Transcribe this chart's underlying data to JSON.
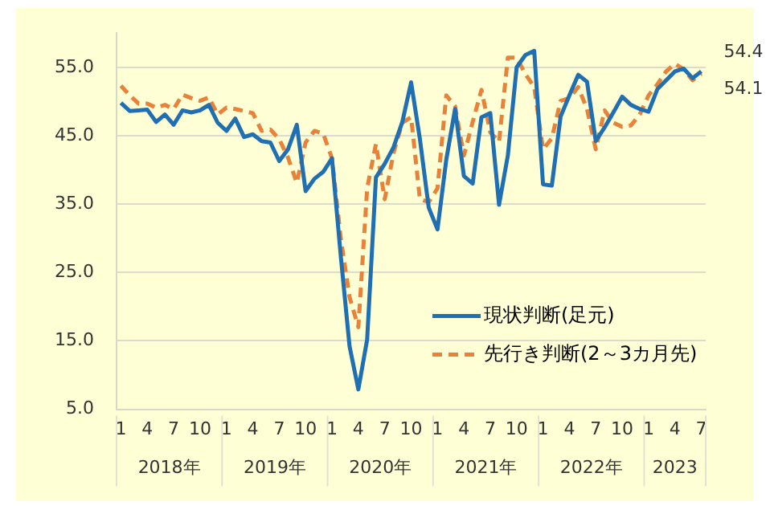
{
  "chart_data": {
    "type": "line",
    "categories": [
      "1",
      null,
      null,
      "4",
      null,
      null,
      "7",
      null,
      null,
      "10",
      null,
      null,
      "1",
      null,
      null,
      "4",
      null,
      null,
      "7",
      null,
      null,
      "10",
      null,
      null,
      "1",
      null,
      null,
      "4",
      null,
      null,
      "7",
      null,
      null,
      "10",
      null,
      null,
      "1",
      null,
      null,
      "4",
      null,
      null,
      "7",
      null,
      null,
      "10",
      null,
      null,
      "1",
      null,
      null,
      "4",
      null,
      null,
      "7",
      null,
      null,
      "10",
      null,
      null,
      "1",
      null,
      null,
      "4",
      null,
      null,
      "7"
    ],
    "annotations": [
      "2018年",
      "2019年",
      "2020年",
      "2021年",
      "2022年",
      "2023"
    ],
    "series": [
      {
        "name": "現状判断(足元)",
        "color": "#1f6fb2",
        "line_style": "solid",
        "values": [
          49.8,
          48.6,
          48.7,
          48.8,
          47.0,
          48.1,
          46.6,
          48.7,
          48.4,
          48.7,
          49.5,
          46.9,
          45.7,
          47.5,
          44.8,
          45.2,
          44.2,
          44.0,
          41.3,
          43.0,
          46.6,
          36.9,
          38.7,
          39.7,
          41.7,
          27.4,
          14.2,
          7.9,
          15.2,
          38.9,
          40.9,
          43.3,
          47.0,
          52.8,
          44.5,
          34.5,
          31.3,
          41.5,
          48.9,
          39.1,
          38.0,
          47.7,
          48.3,
          34.9,
          42.1,
          55.0,
          56.8,
          57.4,
          37.9,
          37.7,
          47.8,
          50.9,
          53.9,
          52.9,
          44.2,
          46.2,
          48.4,
          50.7,
          49.5,
          48.9,
          48.5,
          51.8,
          53.1,
          54.4,
          54.8,
          53.4,
          54.4
        ],
        "value_labels": [
          null,
          null,
          null,
          null,
          null,
          null,
          null,
          null,
          null,
          null,
          null,
          null,
          null,
          null,
          null,
          null,
          null,
          null,
          null,
          null,
          null,
          null,
          null,
          null,
          null,
          null,
          null,
          null,
          null,
          null,
          null,
          null,
          null,
          null,
          null,
          null,
          null,
          null,
          null,
          null,
          null,
          null,
          null,
          null,
          null,
          null,
          null,
          null,
          null,
          null,
          null,
          null,
          null,
          null,
          null,
          null,
          null,
          null,
          null,
          null,
          null,
          null,
          null,
          null,
          null,
          null,
          "54.4"
        ]
      },
      {
        "name": "先行き判断(2～3カ月先)",
        "color": "#e8823a",
        "line_style": "dashed",
        "values": [
          52.3,
          50.9,
          49.7,
          49.7,
          49.1,
          49.5,
          48.9,
          51.0,
          50.5,
          50.1,
          50.6,
          48.1,
          49.1,
          48.9,
          48.6,
          48.3,
          45.7,
          45.9,
          44.5,
          41.8,
          38.1,
          44.0,
          45.7,
          45.3,
          41.7,
          30.0,
          21.4,
          17.0,
          37.3,
          43.8,
          35.7,
          42.5,
          46.9,
          47.7,
          35.7,
          35.3,
          37.3,
          50.9,
          49.3,
          42.1,
          47.0,
          51.7,
          45.5,
          44.1,
          56.4,
          56.4,
          54.0,
          52.1,
          43.0,
          44.6,
          50.1,
          50.5,
          52.1,
          48.9,
          43.0,
          48.7,
          46.9,
          46.3,
          46.5,
          48.1,
          50.9,
          52.5,
          54.4,
          55.5,
          54.7,
          53.1,
          54.1
        ],
        "value_labels": [
          null,
          null,
          null,
          null,
          null,
          null,
          null,
          null,
          null,
          null,
          null,
          null,
          null,
          null,
          null,
          null,
          null,
          null,
          null,
          null,
          null,
          null,
          null,
          null,
          null,
          null,
          null,
          null,
          null,
          null,
          null,
          null,
          null,
          null,
          null,
          null,
          null,
          null,
          null,
          null,
          null,
          null,
          null,
          null,
          null,
          null,
          null,
          null,
          null,
          null,
          null,
          null,
          null,
          null,
          null,
          null,
          null,
          null,
          null,
          null,
          null,
          null,
          null,
          null,
          null,
          null,
          "54.1"
        ]
      }
    ],
    "ylim": [
      5,
      60
    ],
    "yticks": [
      {
        "value": 5,
        "label": "5.0"
      },
      {
        "value": 15,
        "label": "15.0"
      },
      {
        "value": 25,
        "label": "25.0"
      },
      {
        "value": 35,
        "label": "35.0"
      },
      {
        "value": 45,
        "label": "45.0"
      },
      {
        "value": 55,
        "label": "55.0"
      }
    ],
    "grid": "y",
    "legend": "bottom right",
    "marker": "none"
  }
}
